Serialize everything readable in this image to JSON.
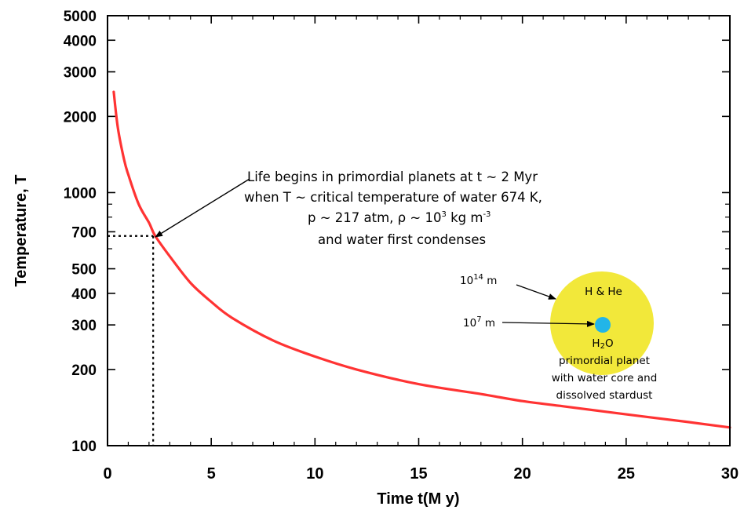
{
  "chart_data": {
    "type": "line",
    "title": "",
    "xlabel": "Time  t(M y)",
    "ylabel": "Temperature,  T",
    "xlim": [
      0,
      30
    ],
    "ylim": [
      100,
      5000
    ],
    "yscale": "log",
    "grid": false,
    "legend": "none",
    "x_ticks": [
      "0",
      "5",
      "10",
      "15",
      "20",
      "25",
      "30"
    ],
    "y_ticks": [
      "100",
      "200",
      "300",
      "400",
      "500",
      "700",
      "1000",
      "2000",
      "3000",
      "4000",
      "5000"
    ],
    "series": [
      {
        "color": "#ff3333",
        "x": [
          0.3,
          0.5,
          0.8,
          1.0,
          1.5,
          2.0,
          2.3,
          3,
          4,
          5,
          6,
          8,
          10,
          12,
          15,
          18,
          20,
          22,
          25,
          28,
          30
        ],
        "y": [
          2500,
          1800,
          1350,
          1180,
          900,
          760,
          674,
          560,
          440,
          370,
          320,
          260,
          225,
          200,
          175,
          160,
          150,
          143,
          133,
          124,
          118
        ]
      }
    ],
    "reference_lines": [
      {
        "style": "dotted",
        "x": 2.2,
        "y": 674
      }
    ],
    "annotations": {
      "life_line1": "Life begins in primordial planets at t ~ 2 Myr",
      "life_line2": "when T ~ critical temperature of water 674 K,",
      "life_line3_a": "p ~ 217 atm, ρ ~ 10",
      "life_line3_sup1": "3",
      "life_line3_b": " kg m",
      "life_line3_sup2": "-3",
      "life_line4": "and water first condenses",
      "outer_radius_base": "10",
      "outer_radius_exp": "14",
      "outer_radius_unit": " m",
      "inner_radius_base": "10",
      "inner_radius_exp": "7",
      "inner_radius_unit": " m",
      "envelope_label": "H & He",
      "core_label_a": "H",
      "core_label_sub": "2",
      "core_label_b": "O",
      "caption_line1": "primordial planet",
      "caption_line2": "with water core and",
      "caption_line3": "dissolved stardust"
    },
    "colors": {
      "envelope": "#f2e83a",
      "core": "#22b5e8",
      "curve": "#ff3333"
    }
  }
}
